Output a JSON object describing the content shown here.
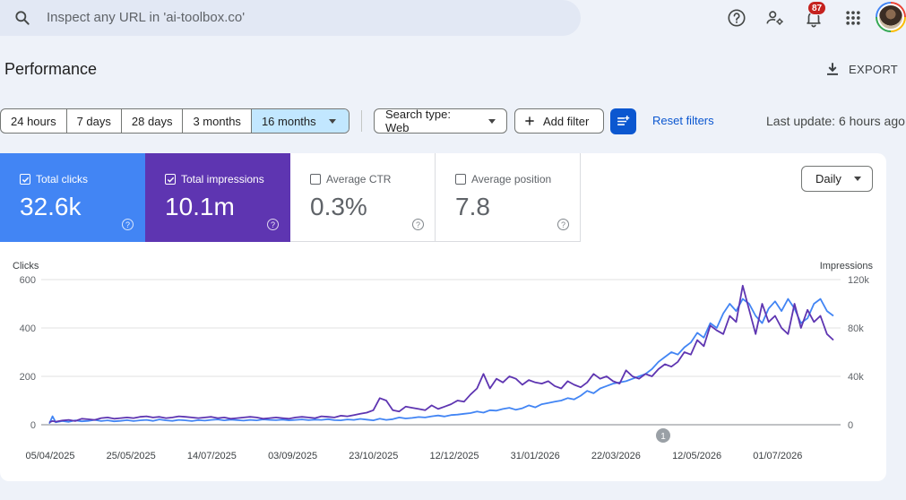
{
  "search": {
    "placeholder": "Inspect any URL in 'ai-toolbox.co'"
  },
  "toolbar": {
    "notification_count": "87",
    "icons": [
      "help-icon",
      "manage-accounts-icon",
      "notifications-icon",
      "apps-grid-icon",
      "avatar"
    ]
  },
  "header": {
    "title": "Performance",
    "export_label": "EXPORT"
  },
  "date_ranges": [
    {
      "label": "24 hours",
      "active": false
    },
    {
      "label": "7 days",
      "active": false
    },
    {
      "label": "28 days",
      "active": false
    },
    {
      "label": "3 months",
      "active": false
    },
    {
      "label": "16 months",
      "active": true
    }
  ],
  "filters": {
    "search_type": "Search type: Web",
    "add_filter": "Add filter",
    "reset": "Reset filters",
    "last_update": "Last update: 6 hours ago"
  },
  "metrics": [
    {
      "label": "Total clicks",
      "value": "32.6k",
      "checked": true,
      "color": "#4285f4"
    },
    {
      "label": "Total impressions",
      "value": "10.1m",
      "checked": true,
      "color": "#5e35b1"
    },
    {
      "label": "Average CTR",
      "value": "0.3%",
      "checked": false
    },
    {
      "label": "Average position",
      "value": "7.8",
      "checked": false
    }
  ],
  "granularity": "Daily",
  "chart_data": {
    "type": "line",
    "y_left_label": "Clicks",
    "y_right_label": "Impressions",
    "y_left_ticks": [
      "0",
      "200",
      "400",
      "600"
    ],
    "y_right_ticks": [
      "0",
      "40k",
      "80k",
      "120k"
    ],
    "ylim_left": [
      0,
      600
    ],
    "ylim_right": [
      0,
      120000
    ],
    "x_tick_labels": [
      "05/04/2025",
      "25/05/2025",
      "14/07/2025",
      "03/09/2025",
      "23/10/2025",
      "12/12/2025",
      "31/01/2026",
      "22/03/2026",
      "12/05/2026",
      "01/07/2026"
    ],
    "annotation": "1",
    "grid": true,
    "series": [
      {
        "name": "Clicks",
        "axis": "left",
        "color": "#4285f4",
        "x": [
          0,
          2,
          4,
          8,
          12,
          16,
          20,
          24,
          28,
          32,
          36,
          40,
          44,
          48,
          52,
          56,
          60,
          64,
          68,
          72,
          76,
          80,
          84,
          88,
          92,
          96,
          100,
          104,
          108,
          112,
          116,
          120,
          124,
          128,
          132,
          136,
          140,
          144,
          148,
          152,
          156,
          160,
          164,
          168,
          172,
          176,
          180,
          184,
          188,
          192,
          196,
          200,
          204,
          208,
          212,
          216,
          220,
          224,
          228,
          232,
          236,
          240,
          244,
          248,
          252,
          256,
          260,
          264,
          268,
          272,
          276,
          280,
          284,
          288,
          292,
          296,
          300,
          304,
          308,
          312,
          316,
          320,
          324,
          328,
          332,
          336,
          340,
          344,
          348,
          352,
          356,
          360,
          364,
          368,
          372,
          376,
          380,
          384,
          388,
          392,
          396,
          400,
          404,
          408,
          412,
          416,
          420,
          424,
          428,
          432,
          436,
          440,
          444,
          448,
          452,
          456,
          460,
          464,
          468,
          472,
          476,
          480,
          484
        ],
        "values": [
          5,
          35,
          10,
          15,
          12,
          18,
          14,
          16,
          20,
          15,
          18,
          14,
          16,
          19,
          15,
          18,
          20,
          16,
          22,
          18,
          16,
          20,
          18,
          15,
          19,
          17,
          20,
          22,
          18,
          21,
          19,
          17,
          20,
          18,
          22,
          20,
          19,
          21,
          18,
          20,
          22,
          19,
          21,
          20,
          23,
          19,
          18,
          22,
          20,
          24,
          21,
          18,
          25,
          20,
          23,
          30,
          26,
          28,
          32,
          30,
          35,
          38,
          34,
          40,
          42,
          45,
          48,
          55,
          50,
          60,
          58,
          65,
          70,
          62,
          68,
          80,
          72,
          85,
          90,
          95,
          100,
          110,
          105,
          120,
          140,
          130,
          150,
          160,
          170,
          175,
          180,
          190,
          200,
          210,
          230,
          260,
          280,
          300,
          290,
          320,
          340,
          380,
          360,
          420,
          400,
          460,
          500,
          470,
          520,
          500,
          450,
          420,
          480,
          510,
          470,
          520,
          480,
          420,
          440,
          500,
          520,
          470,
          450
        ]
      },
      {
        "name": "Impressions",
        "axis": "right",
        "color": "#5e35b1",
        "x": [
          0,
          2,
          4,
          8,
          12,
          16,
          20,
          24,
          28,
          32,
          36,
          40,
          44,
          48,
          52,
          56,
          60,
          64,
          68,
          72,
          76,
          80,
          84,
          88,
          92,
          96,
          100,
          104,
          108,
          112,
          116,
          120,
          124,
          128,
          132,
          136,
          140,
          144,
          148,
          152,
          156,
          160,
          164,
          168,
          172,
          176,
          180,
          184,
          188,
          192,
          196,
          200,
          204,
          208,
          212,
          216,
          220,
          224,
          228,
          232,
          236,
          240,
          244,
          248,
          252,
          256,
          260,
          264,
          268,
          272,
          276,
          280,
          284,
          288,
          292,
          296,
          300,
          304,
          308,
          312,
          316,
          320,
          324,
          328,
          332,
          336,
          340,
          344,
          348,
          352,
          356,
          360,
          364,
          368,
          372,
          376,
          380,
          384,
          388,
          392,
          396,
          400,
          404,
          408,
          412,
          416,
          420,
          424,
          428,
          432,
          436,
          440,
          444,
          448,
          452,
          456,
          460,
          464,
          468,
          472,
          476,
          480,
          484
        ],
        "values": [
          2000,
          3000,
          2500,
          3500,
          4000,
          3000,
          5000,
          4500,
          4000,
          5500,
          6000,
          5000,
          5500,
          6000,
          5500,
          6500,
          7000,
          6000,
          6500,
          5500,
          6000,
          7000,
          6500,
          6000,
          5500,
          6000,
          6500,
          5500,
          6000,
          5000,
          5500,
          6000,
          6500,
          6000,
          5000,
          5500,
          6000,
          5500,
          5000,
          6000,
          6500,
          6000,
          5500,
          7000,
          6500,
          6000,
          7500,
          7000,
          8000,
          9000,
          10000,
          12000,
          22000,
          20000,
          12000,
          11000,
          15000,
          14000,
          13000,
          12000,
          16000,
          13000,
          15000,
          17000,
          20000,
          19000,
          25000,
          30000,
          42000,
          30000,
          38000,
          35000,
          40000,
          38000,
          33000,
          37000,
          35000,
          34000,
          36000,
          32000,
          30000,
          36000,
          33000,
          31000,
          35000,
          42000,
          38000,
          40000,
          36000,
          34000,
          45000,
          40000,
          38000,
          42000,
          40000,
          46000,
          50000,
          48000,
          52000,
          60000,
          58000,
          70000,
          65000,
          82000,
          78000,
          75000,
          90000,
          85000,
          115000,
          95000,
          75000,
          100000,
          85000,
          90000,
          80000,
          75000,
          100000,
          80000,
          95000,
          85000,
          90000,
          75000,
          70000
        ]
      }
    ]
  }
}
